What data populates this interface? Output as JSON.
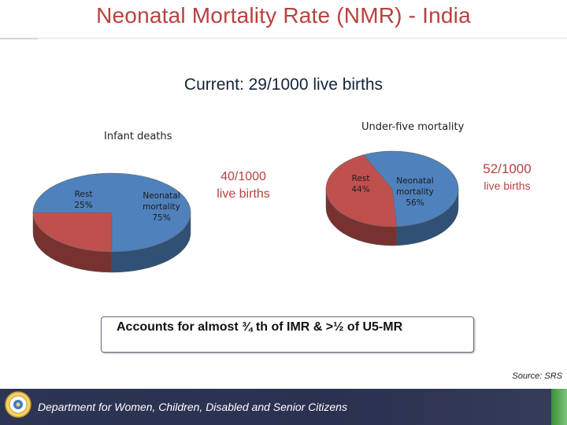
{
  "header": {
    "title": "Neonatal Mortality Rate (NMR) - India",
    "current": "Current:  29/1000 live births"
  },
  "chart_data": [
    {
      "type": "pie",
      "title": "Infant deaths",
      "slices": [
        {
          "label": "Rest",
          "pct_label": "25%",
          "value": 25,
          "color": "#c0504d"
        },
        {
          "label": "Neonatal mortality",
          "pct_label": "75%",
          "value": 75,
          "color": "#4f81bd"
        }
      ],
      "rate": "40/1000 live births",
      "rate_lines": [
        "40/1000",
        "live births"
      ]
    },
    {
      "type": "pie",
      "title": "Under-five mortality",
      "slices": [
        {
          "label": "Rest",
          "pct_label": "44%",
          "value": 44,
          "color": "#c0504d"
        },
        {
          "label": "Neonatal mortality",
          "pct_label": "56%",
          "value": 56,
          "color": "#4f81bd"
        }
      ],
      "rate": "52/1000 live births",
      "rate_lines": [
        "52/1000",
        "live births"
      ]
    }
  ],
  "callout": "Accounts for almost ¾ th of IMR & >½ of U5-MR",
  "source": "Source: SRS",
  "footer": {
    "text": "Department for Women, Children, Disabled and Senior Citizens",
    "seal_icon": "state-seal-icon"
  }
}
